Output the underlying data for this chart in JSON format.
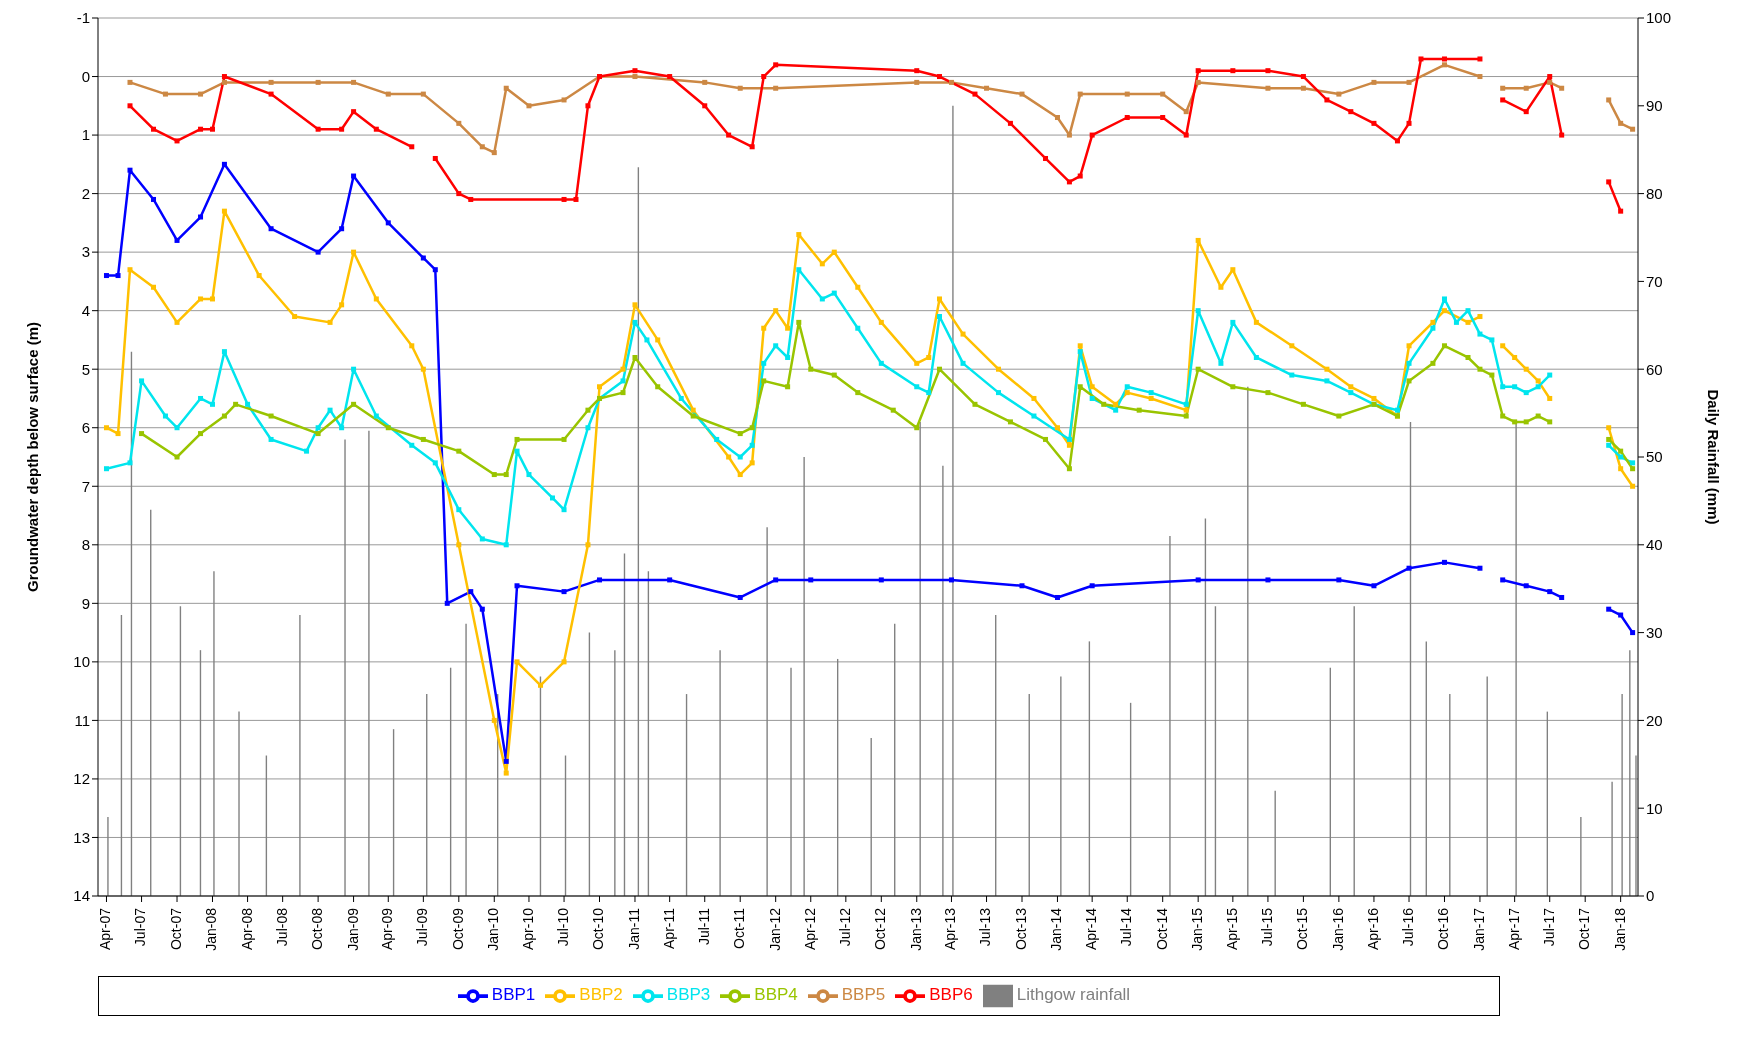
{
  "chart_data": {
    "type": "line",
    "ylabel": "Groundwater depth below surface (m)",
    "y2label": "Daily Rainfall (mm)",
    "xlim": [
      "2007-03-10",
      "2018-02-15"
    ],
    "xticks": [
      {
        "value": "2007-04",
        "label": "Apr-07"
      },
      {
        "value": "2007-07",
        "label": "Jul-07"
      },
      {
        "value": "2007-10",
        "label": "Oct-07"
      },
      {
        "value": "2008-01",
        "label": "Jan-08"
      },
      {
        "value": "2008-04",
        "label": "Apr-08"
      },
      {
        "value": "2008-07",
        "label": "Jul-08"
      },
      {
        "value": "2008-10",
        "label": "Oct-08"
      },
      {
        "value": "2009-01",
        "label": "Jan-09"
      },
      {
        "value": "2009-04",
        "label": "Apr-09"
      },
      {
        "value": "2009-07",
        "label": "Jul-09"
      },
      {
        "value": "2009-10",
        "label": "Oct-09"
      },
      {
        "value": "2010-01",
        "label": "Jan-10"
      },
      {
        "value": "2010-04",
        "label": "Apr-10"
      },
      {
        "value": "2010-07",
        "label": "Jul-10"
      },
      {
        "value": "2010-10",
        "label": "Oct-10"
      },
      {
        "value": "2011-01",
        "label": "Jan-11"
      },
      {
        "value": "2011-04",
        "label": "Apr-11"
      },
      {
        "value": "2011-07",
        "label": "Jul-11"
      },
      {
        "value": "2011-10",
        "label": "Oct-11"
      },
      {
        "value": "2012-01",
        "label": "Jan-12"
      },
      {
        "value": "2012-04",
        "label": "Apr-12"
      },
      {
        "value": "2012-07",
        "label": "Jul-12"
      },
      {
        "value": "2012-10",
        "label": "Oct-12"
      },
      {
        "value": "2013-01",
        "label": "Jan-13"
      },
      {
        "value": "2013-04",
        "label": "Apr-13"
      },
      {
        "value": "2013-07",
        "label": "Jul-13"
      },
      {
        "value": "2013-10",
        "label": "Oct-13"
      },
      {
        "value": "2014-01",
        "label": "Jan-14"
      },
      {
        "value": "2014-04",
        "label": "Apr-14"
      },
      {
        "value": "2014-07",
        "label": "Jul-14"
      },
      {
        "value": "2014-10",
        "label": "Oct-14"
      },
      {
        "value": "2015-01",
        "label": "Jan-15"
      },
      {
        "value": "2015-04",
        "label": "Apr-15"
      },
      {
        "value": "2015-07",
        "label": "Jul-15"
      },
      {
        "value": "2015-10",
        "label": "Oct-15"
      },
      {
        "value": "2016-01",
        "label": "Jan-16"
      },
      {
        "value": "2016-04",
        "label": "Apr-16"
      },
      {
        "value": "2016-07",
        "label": "Jul-16"
      },
      {
        "value": "2016-10",
        "label": "Oct-16"
      },
      {
        "value": "2017-01",
        "label": "Jan-17"
      },
      {
        "value": "2017-04",
        "label": "Apr-17"
      },
      {
        "value": "2017-07",
        "label": "Jul-17"
      },
      {
        "value": "2017-10",
        "label": "Oct-17"
      },
      {
        "value": "2018-01",
        "label": "Jan-18"
      }
    ],
    "ylim": [
      14,
      -1
    ],
    "yticks": [
      -1,
      0,
      1,
      2,
      3,
      4,
      5,
      6,
      7,
      8,
      9,
      10,
      11,
      12,
      13,
      14
    ],
    "y2lim": [
      0,
      100
    ],
    "y2ticks": [
      0,
      10,
      20,
      30,
      40,
      50,
      60,
      70,
      80,
      90,
      100
    ],
    "grid": "y",
    "legend": "bottom",
    "marker": "square",
    "series": [
      {
        "name": "Lithgow rainfall",
        "type": "bar",
        "axis": "y2",
        "color": "#808080",
        "x": [
          "2007-04-05",
          "2007-05-10",
          "2007-06-05",
          "2007-07-25",
          "2007-10-10",
          "2007-12-01",
          "2008-01-05",
          "2008-03-10",
          "2008-05-20",
          "2008-08-15",
          "2008-12-10",
          "2009-02-10",
          "2009-04-15",
          "2009-07-10",
          "2009-09-10",
          "2009-10-20",
          "2010-01-10",
          "2010-05-01",
          "2010-07-05",
          "2010-09-05",
          "2010-11-10",
          "2010-12-05",
          "2011-01-10",
          "2011-02-05",
          "2011-05-15",
          "2011-08-10",
          "2011-12-10",
          "2012-02-10",
          "2012-03-15",
          "2012-06-10",
          "2012-09-05",
          "2012-11-05",
          "2013-01-10",
          "2013-03-10",
          "2013-04-05",
          "2013-07-25",
          "2013-10-20",
          "2014-01-10",
          "2014-03-25",
          "2014-07-10",
          "2014-10-20",
          "2015-01-20",
          "2015-02-15",
          "2015-05-10",
          "2015-07-20",
          "2015-12-10",
          "2016-02-10",
          "2016-07-05",
          "2016-08-15",
          "2016-10-15",
          "2017-01-20",
          "2017-04-05",
          "2017-06-25",
          "2017-09-20",
          "2017-12-10",
          "2018-01-05",
          "2018-01-25",
          "2018-02-10"
        ],
        "values": [
          9,
          32,
          62,
          44,
          33,
          28,
          37,
          21,
          16,
          32,
          52,
          53,
          19,
          23,
          26,
          31,
          23,
          25,
          16,
          30,
          28,
          39,
          83,
          37,
          23,
          28,
          42,
          26,
          50,
          27,
          18,
          31,
          54,
          49,
          90,
          32,
          23,
          25,
          29,
          22,
          41,
          43,
          33,
          58,
          12,
          26,
          33,
          54,
          29,
          23,
          25,
          54,
          21,
          9,
          13,
          23,
          28,
          16
        ]
      },
      {
        "name": "BBP1",
        "color": "#0000ff",
        "x": [
          "2007-04",
          "2007-05",
          "2007-06",
          "2007-08",
          "2007-10",
          "2007-12",
          "2008-02",
          "2008-06",
          "2008-10",
          "2008-12",
          "2009-01",
          "2009-04",
          "2009-07",
          "2009-08",
          "2009-09",
          "2009-11",
          "2009-12",
          "2010-02",
          "2010-03",
          "2010-07",
          "2010-10",
          "2011-04",
          "2011-10",
          "2012-01",
          "2012-04",
          "2012-10",
          "2013-04",
          "2013-10",
          "2014-01",
          "2014-04",
          "2015-01",
          "2015-07",
          "2016-01",
          "2016-04",
          "2016-07",
          "2016-10",
          "2017-01",
          "2017-02",
          "2017-03",
          "2017-05",
          "2017-07",
          "2017-08",
          "2017-10",
          "2017-12",
          "2018-01",
          "2018-02"
        ],
        "values": [
          3.4,
          3.4,
          1.6,
          2.1,
          2.8,
          2.4,
          1.5,
          2.6,
          3.0,
          2.6,
          1.7,
          2.5,
          3.1,
          3.3,
          9.0,
          8.8,
          9.1,
          11.7,
          8.7,
          8.8,
          8.6,
          8.6,
          8.9,
          8.6,
          8.6,
          8.6,
          8.6,
          8.7,
          8.9,
          8.7,
          8.6,
          8.6,
          8.6,
          8.7,
          8.4,
          8.3,
          8.4,
          null,
          8.6,
          8.7,
          8.8,
          8.9,
          null,
          9.1,
          9.2,
          9.5
        ]
      },
      {
        "name": "BBP2",
        "color": "#ffc000",
        "x": [
          "2007-04",
          "2007-05",
          "2007-06",
          "2007-08",
          "2007-10",
          "2007-12",
          "2008-01",
          "2008-02",
          "2008-05",
          "2008-08",
          "2008-11",
          "2008-12",
          "2009-01",
          "2009-03",
          "2009-06",
          "2009-07",
          "2009-10",
          "2010-01",
          "2010-02",
          "2010-03",
          "2010-05",
          "2010-07",
          "2010-09",
          "2010-10",
          "2010-12",
          "2011-01",
          "2011-03",
          "2011-06",
          "2011-09",
          "2011-10",
          "2011-11",
          "2011-12",
          "2012-01",
          "2012-02",
          "2012-03",
          "2012-05",
          "2012-06",
          "2012-08",
          "2012-10",
          "2013-01",
          "2013-02",
          "2013-03",
          "2013-05",
          "2013-08",
          "2013-11",
          "2014-01",
          "2014-02",
          "2014-03",
          "2014-04",
          "2014-06",
          "2014-07",
          "2014-09",
          "2014-12",
          "2015-01",
          "2015-03",
          "2015-04",
          "2015-06",
          "2015-09",
          "2015-12",
          "2016-02",
          "2016-04",
          "2016-06",
          "2016-07",
          "2016-09",
          "2016-10",
          "2016-12",
          "2017-01",
          "2017-02",
          "2017-03",
          "2017-04",
          "2017-05",
          "2017-06",
          "2017-07",
          "2017-10",
          "2017-12",
          "2018-01",
          "2018-02"
        ],
        "values": [
          6.0,
          6.1,
          3.3,
          3.6,
          4.2,
          3.8,
          3.8,
          2.3,
          3.4,
          4.1,
          4.2,
          3.9,
          3.0,
          3.8,
          4.6,
          5.0,
          8.0,
          11.0,
          11.9,
          10.0,
          10.4,
          10.0,
          8.0,
          5.3,
          5.0,
          3.9,
          4.5,
          5.7,
          6.5,
          6.8,
          6.6,
          4.3,
          4.0,
          4.3,
          2.7,
          3.2,
          3.0,
          3.6,
          4.2,
          4.9,
          4.8,
          3.8,
          4.4,
          5.0,
          5.5,
          6.0,
          6.3,
          4.6,
          5.3,
          5.6,
          5.4,
          5.5,
          5.7,
          2.8,
          3.6,
          3.3,
          4.2,
          4.6,
          5.0,
          5.3,
          5.5,
          5.8,
          4.6,
          4.2,
          4.0,
          4.2,
          4.1,
          null,
          4.6,
          4.8,
          5.0,
          5.2,
          5.5,
          null,
          6.0,
          6.7,
          7.0
        ]
      },
      {
        "name": "BBP3",
        "color": "#00e5ee",
        "x": [
          "2007-04",
          "2007-06",
          "2007-07",
          "2007-09",
          "2007-10",
          "2007-12",
          "2008-01",
          "2008-02",
          "2008-04",
          "2008-06",
          "2008-09",
          "2008-10",
          "2008-11",
          "2008-12",
          "2009-01",
          "2009-03",
          "2009-06",
          "2009-08",
          "2009-10",
          "2009-12",
          "2010-02",
          "2010-03",
          "2010-04",
          "2010-06",
          "2010-07",
          "2010-09",
          "2010-10",
          "2010-12",
          "2011-01",
          "2011-02",
          "2011-05",
          "2011-08",
          "2011-10",
          "2011-11",
          "2011-12",
          "2012-01",
          "2012-02",
          "2012-03",
          "2012-05",
          "2012-06",
          "2012-08",
          "2012-10",
          "2013-01",
          "2013-02",
          "2013-03",
          "2013-05",
          "2013-08",
          "2013-11",
          "2014-02",
          "2014-03",
          "2014-04",
          "2014-06",
          "2014-07",
          "2014-09",
          "2014-12",
          "2015-01",
          "2015-03",
          "2015-04",
          "2015-06",
          "2015-09",
          "2015-12",
          "2016-02",
          "2016-04",
          "2016-06",
          "2016-07",
          "2016-09",
          "2016-10",
          "2016-11",
          "2016-12",
          "2017-01",
          "2017-02",
          "2017-03",
          "2017-04",
          "2017-05",
          "2017-06",
          "2017-07",
          "2017-10",
          "2017-12",
          "2018-01",
          "2018-02"
        ],
        "values": [
          6.7,
          6.6,
          5.2,
          5.8,
          6.0,
          5.5,
          5.6,
          4.7,
          5.6,
          6.2,
          6.4,
          6.0,
          5.7,
          6.0,
          5.0,
          5.8,
          6.3,
          6.6,
          7.4,
          7.9,
          8.0,
          6.4,
          6.8,
          7.2,
          7.4,
          6.0,
          5.5,
          5.2,
          4.2,
          4.5,
          5.5,
          6.2,
          6.5,
          6.3,
          4.9,
          4.6,
          4.8,
          3.3,
          3.8,
          3.7,
          4.3,
          4.9,
          5.3,
          5.4,
          4.1,
          4.9,
          5.4,
          5.8,
          6.2,
          4.7,
          5.5,
          5.7,
          5.3,
          5.4,
          5.6,
          4.0,
          4.9,
          4.2,
          4.8,
          5.1,
          5.2,
          5.4,
          5.6,
          5.7,
          4.9,
          4.3,
          3.8,
          4.2,
          4.0,
          4.4,
          4.5,
          5.3,
          5.3,
          5.4,
          5.3,
          5.1,
          null,
          6.3,
          6.5,
          6.6
        ]
      },
      {
        "name": "BBP4",
        "color": "#99c400",
        "x": [
          "2007-07",
          "2007-10",
          "2007-12",
          "2008-02",
          "2008-03",
          "2008-06",
          "2008-10",
          "2009-01",
          "2009-04",
          "2009-07",
          "2009-10",
          "2010-01",
          "2010-02",
          "2010-03",
          "2010-07",
          "2010-09",
          "2010-10",
          "2010-12",
          "2011-01",
          "2011-03",
          "2011-06",
          "2011-10",
          "2011-11",
          "2011-12",
          "2012-02",
          "2012-03",
          "2012-04",
          "2012-06",
          "2012-08",
          "2012-11",
          "2013-01",
          "2013-03",
          "2013-06",
          "2013-09",
          "2013-12",
          "2014-02",
          "2014-03",
          "2014-05",
          "2014-08",
          "2014-12",
          "2015-01",
          "2015-04",
          "2015-07",
          "2015-10",
          "2016-01",
          "2016-04",
          "2016-06",
          "2016-07",
          "2016-09",
          "2016-10",
          "2016-12",
          "2017-01",
          "2017-02",
          "2017-03",
          "2017-04",
          "2017-05",
          "2017-06",
          "2017-07",
          "2017-10",
          "2017-12",
          "2018-01",
          "2018-02"
        ],
        "values": [
          6.1,
          6.5,
          6.1,
          5.8,
          5.6,
          5.8,
          6.1,
          5.6,
          6.0,
          6.2,
          6.4,
          6.8,
          6.8,
          6.2,
          6.2,
          5.7,
          5.5,
          5.4,
          4.8,
          5.3,
          5.8,
          6.1,
          6.0,
          5.2,
          5.3,
          4.2,
          5.0,
          5.1,
          5.4,
          5.7,
          6.0,
          5.0,
          5.6,
          5.9,
          6.2,
          6.7,
          5.3,
          5.6,
          5.7,
          5.8,
          5.0,
          5.3,
          5.4,
          5.6,
          5.8,
          5.6,
          5.8,
          5.2,
          4.9,
          4.6,
          4.8,
          5.0,
          5.1,
          5.8,
          5.9,
          5.9,
          5.8,
          5.9,
          null,
          6.2,
          6.4,
          6.7
        ]
      },
      {
        "name": "BBP5",
        "color": "#cc8844",
        "x": [
          "2007-06",
          "2007-09",
          "2007-12",
          "2008-02",
          "2008-06",
          "2008-10",
          "2009-01",
          "2009-04",
          "2009-07",
          "2009-10",
          "2009-12",
          "2010-01",
          "2010-02",
          "2010-04",
          "2010-07",
          "2010-10",
          "2011-01",
          "2011-07",
          "2011-10",
          "2012-01",
          "2013-01",
          "2013-04",
          "2013-07",
          "2013-10",
          "2014-01",
          "2014-02",
          "2014-03",
          "2014-07",
          "2014-10",
          "2014-12",
          "2015-01",
          "2015-07",
          "2015-10",
          "2016-01",
          "2016-04",
          "2016-07",
          "2016-10",
          "2017-01",
          "2017-02",
          "2017-03",
          "2017-05",
          "2017-07",
          "2017-08",
          "2017-10",
          "2017-12",
          "2018-01",
          "2018-02"
        ],
        "values": [
          0.1,
          0.3,
          0.3,
          0.1,
          0.1,
          0.1,
          0.1,
          0.3,
          0.3,
          0.8,
          1.2,
          1.3,
          0.2,
          0.5,
          0.4,
          0.0,
          0.0,
          0.1,
          0.2,
          0.2,
          0.1,
          0.1,
          0.2,
          0.3,
          0.7,
          1.0,
          0.3,
          0.3,
          0.3,
          0.6,
          0.1,
          0.2,
          0.2,
          0.3,
          0.1,
          0.1,
          -0.2,
          0.0,
          null,
          0.2,
          0.2,
          0.1,
          0.2,
          null,
          0.4,
          0.8,
          0.9
        ]
      },
      {
        "name": "BBP6",
        "color": "#ff0000",
        "x": [
          "2007-06",
          "2007-08",
          "2007-10",
          "2007-12",
          "2008-01",
          "2008-02",
          "2008-06",
          "2008-10",
          "2008-12",
          "2009-01",
          "2009-03",
          "2009-06",
          "2009-07",
          "2009-08",
          "2009-10",
          "2009-11",
          "2010-07",
          "2010-08",
          "2010-09",
          "2010-10",
          "2011-01",
          "2011-04",
          "2011-07",
          "2011-09",
          "2011-11",
          "2011-12",
          "2012-01",
          "2013-01",
          "2013-03",
          "2013-06",
          "2013-09",
          "2013-12",
          "2014-02",
          "2014-03",
          "2014-04",
          "2014-07",
          "2014-10",
          "2014-12",
          "2015-01",
          "2015-04",
          "2015-07",
          "2015-10",
          "2015-12",
          "2016-02",
          "2016-04",
          "2016-06",
          "2016-07",
          "2016-08",
          "2016-10",
          "2017-01",
          "2017-02",
          "2017-03",
          "2017-05",
          "2017-07",
          "2017-08",
          "2017-10",
          "2017-12",
          "2018-01"
        ],
        "values": [
          0.5,
          0.9,
          1.1,
          0.9,
          0.9,
          0.0,
          0.3,
          0.9,
          0.9,
          0.6,
          0.9,
          1.2,
          null,
          1.4,
          2.0,
          2.1,
          2.1,
          2.1,
          0.5,
          0.0,
          -0.1,
          0.0,
          0.5,
          1.0,
          1.2,
          0.0,
          -0.2,
          -0.1,
          0.0,
          0.3,
          0.8,
          1.4,
          1.8,
          1.7,
          1.0,
          0.7,
          0.7,
          1.0,
          -0.1,
          -0.1,
          -0.1,
          0.0,
          0.4,
          0.6,
          0.8,
          1.1,
          0.8,
          -0.3,
          -0.3,
          -0.3,
          null,
          0.4,
          0.6,
          0.0,
          1.0,
          null,
          1.8,
          2.3
        ]
      }
    ]
  }
}
